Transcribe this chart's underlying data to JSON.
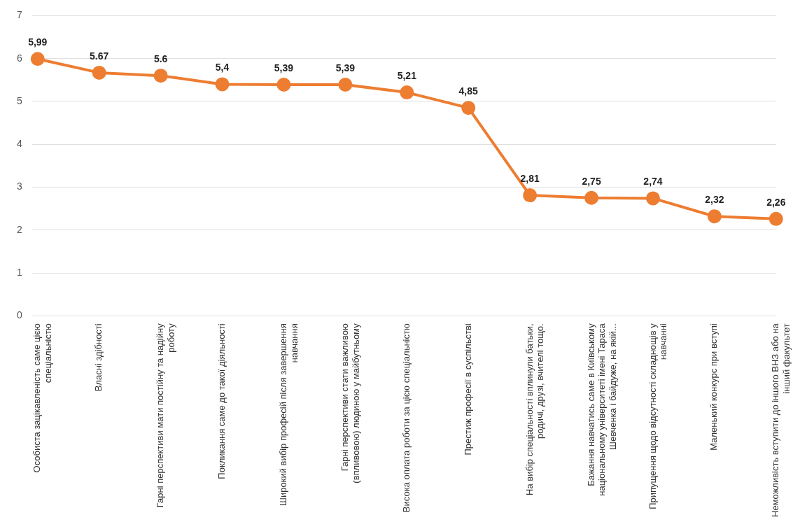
{
  "chart_data": {
    "type": "line",
    "categories": [
      "Особиста зацікавленість саме цією спеціальністю",
      "Власні здібності",
      "Гарні перспективи мати постійну та надійну роботу",
      "Покликання саме до такої діяльності",
      "Широкий вибір професій після завершення навчання",
      "Гарні перспективи стати важливою (впливовою) людиною у майбутньому",
      "Висока оплата роботи за цією спеціальністю",
      "Престиж професії в суспільстві",
      "На вибір спеціальності вплинули батьки, родичі, друзі, вчителі тощо.",
      "Бажання навчатись саме в Київському національному університеті імені Тараса Шевченка і байдуже, на якій...",
      "Припущення щодо відсутності складнощів у навчанні",
      "Маленький конкурс при вступі",
      "Неможливість вступити до іншого ВНЗ або на інший факультет"
    ],
    "series": [
      {
        "color": "#ed7d31",
        "values": [
          5.99,
          5.67,
          5.6,
          5.4,
          5.39,
          5.39,
          5.21,
          4.85,
          2.81,
          2.75,
          2.74,
          2.32,
          2.26
        ],
        "value_labels": [
          "5,99",
          "5.67",
          "5.6",
          "5,4",
          "5,39",
          "5,39",
          "5,21",
          "4,85",
          "2,81",
          "2,75",
          "2,74",
          "2,32",
          "2,26"
        ]
      }
    ],
    "ylim": [
      0,
      7
    ],
    "yticks": [
      0,
      1,
      2,
      3,
      4,
      5,
      6,
      7
    ],
    "grid": "y",
    "legend": false,
    "marker": "circle",
    "line_style": "solid"
  }
}
